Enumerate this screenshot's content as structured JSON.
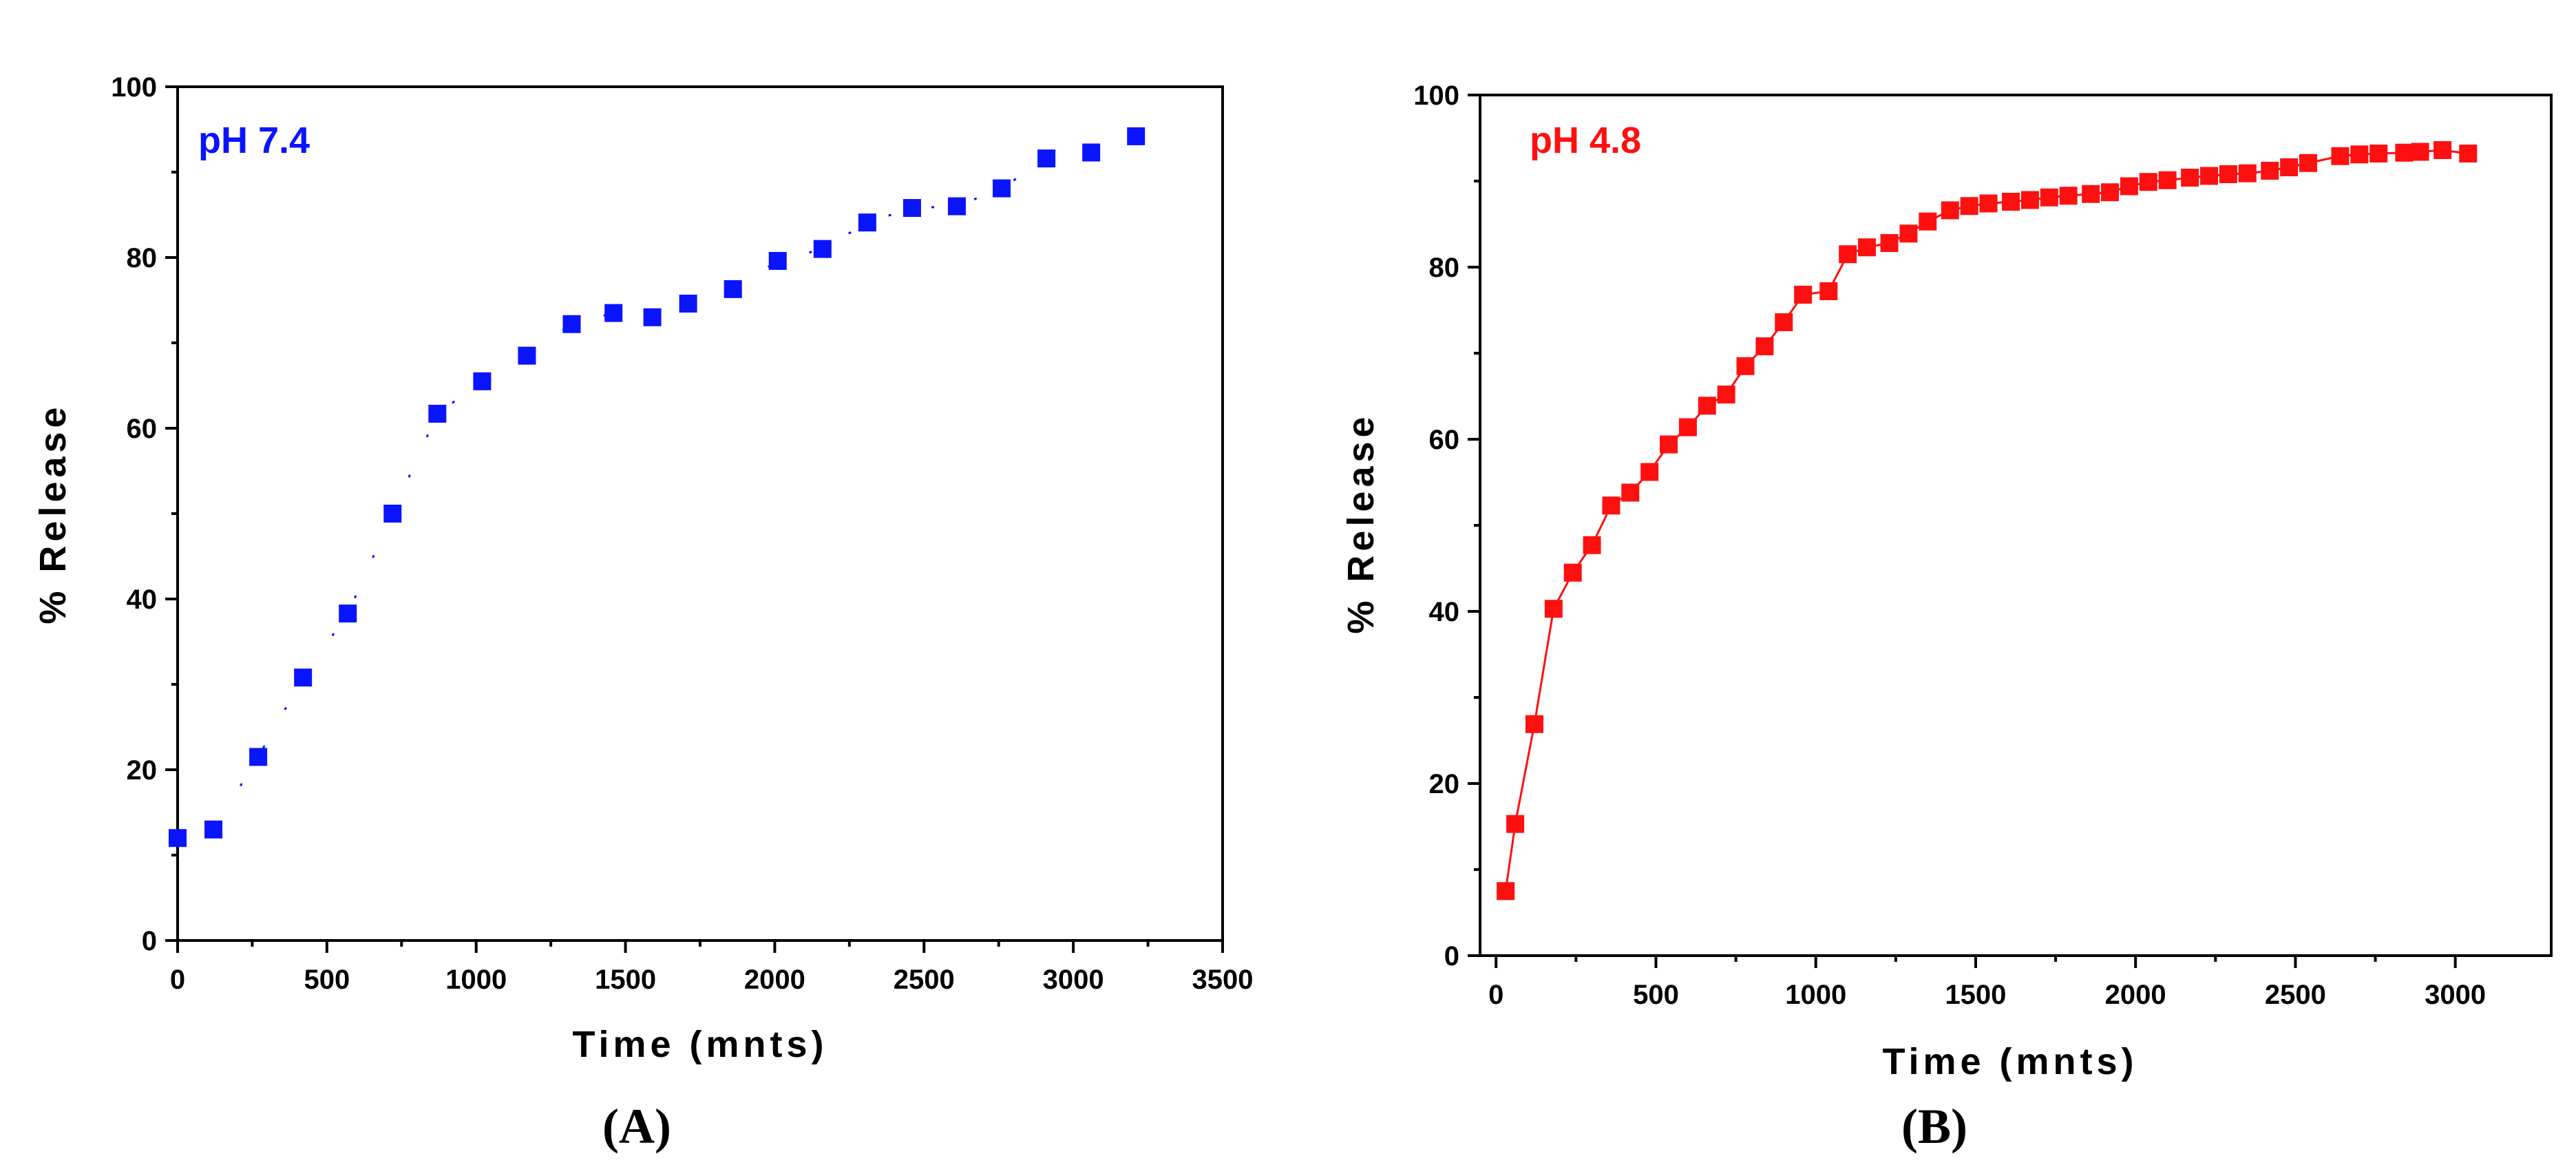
{
  "chart_data": [
    {
      "panel_tag": "(A)",
      "type": "scatter",
      "title": "",
      "series_label": "pH 7.4",
      "color": "#0a14ff",
      "xlabel": "Time (mnts)",
      "ylabel": "% Release",
      "xlim": [
        0,
        3500
      ],
      "ylim": [
        0,
        100
      ],
      "xticks": [
        0,
        500,
        1000,
        1500,
        2000,
        2500,
        3000,
        3500
      ],
      "yticks": [
        0,
        20,
        40,
        60,
        80,
        100
      ],
      "x": [
        0,
        120,
        270,
        420,
        570,
        720,
        870,
        1020,
        1170,
        1320,
        1460,
        1590,
        1710,
        1860,
        2010,
        2160,
        2310,
        2460,
        2610,
        2760,
        2910,
        3060,
        3210
      ],
      "y": [
        12,
        13,
        21.5,
        30.8,
        38.3,
        50,
        61.7,
        65.5,
        68.5,
        72.2,
        73.5,
        73,
        74.6,
        76.3,
        79.6,
        81,
        84.1,
        85.8,
        86,
        88.1,
        91.6,
        92.3,
        94.2
      ]
    },
    {
      "panel_tag": "(B)",
      "type": "line",
      "title": "",
      "series_label": "pH 4.8",
      "color": "#ff1010",
      "xlabel": "Time (mnts)",
      "ylabel": "% Release",
      "xlim": [
        -50,
        3300
      ],
      "ylim": [
        0,
        100
      ],
      "xticks": [
        0,
        500,
        1000,
        1500,
        2000,
        2500,
        3000
      ],
      "yticks": [
        0,
        20,
        40,
        60,
        80,
        100
      ],
      "x": [
        30,
        60,
        120,
        180,
        240,
        300,
        360,
        420,
        480,
        540,
        600,
        660,
        720,
        780,
        840,
        900,
        960,
        1040,
        1100,
        1160,
        1230,
        1290,
        1350,
        1420,
        1480,
        1540,
        1610,
        1670,
        1730,
        1790,
        1860,
        1920,
        1980,
        2040,
        2100,
        2170,
        2230,
        2290,
        2350,
        2420,
        2480,
        2540,
        2640,
        2700,
        2760,
        2840,
        2890,
        2960,
        3040
      ],
      "y": [
        7.5,
        15.3,
        26.9,
        40.3,
        44.5,
        47.7,
        52.3,
        53.8,
        56.2,
        59.4,
        61.4,
        63.9,
        65.2,
        68.5,
        70.8,
        73.6,
        76.8,
        77.2,
        81.5,
        82.3,
        82.8,
        83.9,
        85.3,
        86.6,
        87.1,
        87.4,
        87.6,
        87.8,
        88.1,
        88.3,
        88.5,
        88.7,
        89.4,
        89.9,
        90.1,
        90.4,
        90.6,
        90.8,
        90.9,
        91.2,
        91.6,
        92.1,
        92.9,
        93.1,
        93.2,
        93.3,
        93.4,
        93.6,
        93.2
      ]
    }
  ]
}
